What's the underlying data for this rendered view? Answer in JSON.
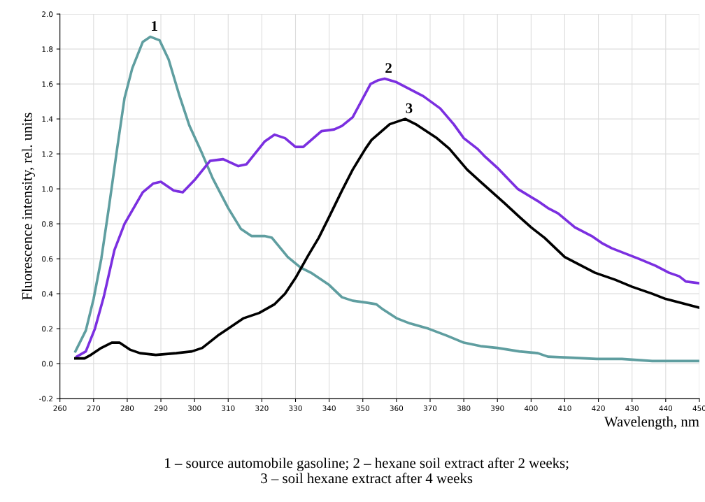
{
  "chart_data": {
    "type": "line",
    "xlabel": "Wavelength, nm",
    "ylabel": "Fluorescence intensity, rel. units",
    "xlim": [
      260,
      450
    ],
    "xticks": [
      260,
      270,
      280,
      290,
      300,
      310,
      320,
      330,
      340,
      350,
      360,
      370,
      380,
      390,
      400,
      410,
      420,
      430,
      440,
      450
    ],
    "ylim": [
      -0.2,
      2.0
    ],
    "yticks": [
      {
        "value": -0.2,
        "label": "-0.2"
      },
      {
        "value": 0,
        "label": "0.0"
      },
      {
        "value": 0.2,
        "label": "0.2"
      },
      {
        "value": 0.4,
        "label": "0.4"
      },
      {
        "value": 0.6,
        "label": "0.6"
      },
      {
        "value": 0.8,
        "label": "0.8"
      },
      {
        "value": 1.0,
        "label": "1.0"
      },
      {
        "value": 1.2,
        "label": "1.2"
      },
      {
        "value": 1.4,
        "label": "1.4"
      },
      {
        "value": 1.6,
        "label": "1.6"
      },
      {
        "value": 1.8,
        "label": "1.8"
      },
      {
        "value": 2.0,
        "label": "2.0"
      }
    ],
    "grid": true,
    "marker": "none",
    "line_style": "solid",
    "series": [
      {
        "name": "1",
        "color": "#5f9ea0",
        "x": [
          264.6,
          267.7,
          270,
          272.3,
          274.6,
          277,
          279.2,
          281.5,
          284.6,
          286.9,
          289.6,
          292.3,
          295.4,
          298.5,
          302.3,
          305.4,
          310,
          313.8,
          316.9,
          320.8,
          323,
          327.7,
          331.5,
          334.6,
          340,
          343.8,
          347,
          350.8,
          354,
          356,
          360,
          364,
          369.5,
          375,
          380,
          385,
          390,
          396.5,
          402,
          405,
          412,
          419.5,
          427,
          436,
          450
        ],
        "values": [
          0.07,
          0.19,
          0.37,
          0.6,
          0.9,
          1.23,
          1.52,
          1.69,
          1.84,
          1.87,
          1.85,
          1.74,
          1.54,
          1.36,
          1.2,
          1.06,
          0.89,
          0.77,
          0.73,
          0.73,
          0.72,
          0.61,
          0.55,
          0.52,
          0.45,
          0.38,
          0.36,
          0.35,
          0.34,
          0.31,
          0.26,
          0.23,
          0.2,
          0.16,
          0.12,
          0.1,
          0.09,
          0.07,
          0.06,
          0.04,
          0.034,
          0.027,
          0.027,
          0.015,
          0.015
        ]
      },
      {
        "name": "2",
        "color": "#7b2fe0",
        "x": [
          265,
          267.7,
          270.4,
          273,
          276.2,
          279.2,
          284.6,
          287.7,
          290,
          293.8,
          296.5,
          300,
          304.6,
          308.5,
          313,
          315.4,
          320.8,
          323.8,
          326.9,
          330,
          332.3,
          337.7,
          341.5,
          343.8,
          347,
          352.3,
          354.4,
          356.5,
          360,
          364,
          368,
          373,
          377,
          380,
          384,
          386,
          390,
          393,
          396,
          402,
          405,
          408,
          413,
          418,
          421,
          424,
          428,
          432,
          437,
          441,
          444,
          446,
          450
        ],
        "values": [
          0.04,
          0.07,
          0.2,
          0.38,
          0.65,
          0.8,
          0.98,
          1.03,
          1.04,
          0.99,
          0.98,
          1.05,
          1.16,
          1.17,
          1.13,
          1.14,
          1.27,
          1.31,
          1.29,
          1.24,
          1.24,
          1.33,
          1.34,
          1.36,
          1.41,
          1.6,
          1.62,
          1.63,
          1.61,
          1.57,
          1.53,
          1.46,
          1.37,
          1.29,
          1.23,
          1.19,
          1.12,
          1.06,
          1.0,
          0.93,
          0.89,
          0.86,
          0.78,
          0.73,
          0.69,
          0.66,
          0.63,
          0.6,
          0.56,
          0.52,
          0.5,
          0.47,
          0.46
        ]
      },
      {
        "name": "3",
        "color": "#000000",
        "x": [
          264.6,
          267.3,
          269.2,
          272.3,
          275.4,
          277.7,
          280.8,
          283.8,
          288.5,
          294.6,
          299.2,
          302.3,
          306.9,
          310,
          314.6,
          319.2,
          323.8,
          326.9,
          330,
          333.8,
          336.9,
          340,
          343.8,
          347,
          350.8,
          352.6,
          358,
          362.6,
          365.7,
          372,
          375.7,
          381,
          385,
          392,
          396.5,
          400,
          404,
          410,
          412,
          419,
          425,
          430,
          436,
          440,
          444,
          450
        ],
        "values": [
          0.03,
          0.03,
          0.05,
          0.09,
          0.12,
          0.12,
          0.08,
          0.06,
          0.05,
          0.06,
          0.07,
          0.09,
          0.16,
          0.2,
          0.26,
          0.29,
          0.34,
          0.4,
          0.49,
          0.62,
          0.72,
          0.84,
          0.99,
          1.11,
          1.23,
          1.28,
          1.37,
          1.4,
          1.37,
          1.29,
          1.23,
          1.11,
          1.04,
          0.92,
          0.84,
          0.78,
          0.72,
          0.61,
          0.59,
          0.52,
          0.48,
          0.44,
          0.4,
          0.37,
          0.35,
          0.32
        ]
      }
    ],
    "annotations": [
      "1 – source automobile gasoline; 2 – hexane soil extract after 2 weeks;\n3 – soil hexane extract after 4 weeks"
    ]
  }
}
